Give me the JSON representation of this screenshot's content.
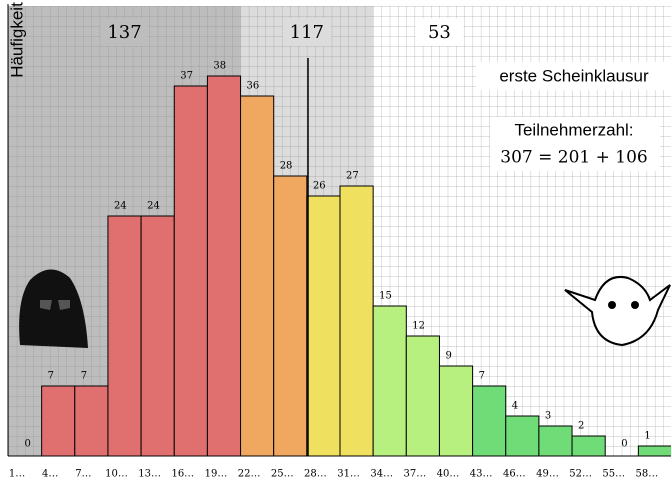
{
  "chart_data": {
    "type": "bar",
    "ylabel": "Häufigkeit",
    "categories": [
      "1…",
      "4…",
      "7…",
      "10…",
      "13…",
      "16…",
      "19…",
      "22…",
      "25…",
      "28…",
      "31…",
      "34…",
      "37…",
      "40…",
      "43…",
      "46…",
      "49…",
      "52…",
      "55…",
      "58…"
    ],
    "values": [
      0,
      7,
      7,
      24,
      24,
      37,
      38,
      36,
      28,
      26,
      27,
      15,
      12,
      9,
      7,
      4,
      3,
      2,
      0,
      1
    ],
    "colors": [
      "#e07070",
      "#e07070",
      "#e07070",
      "#e07070",
      "#e07070",
      "#e07070",
      "#e07070",
      "#f0a860",
      "#f0a860",
      "#f0e060",
      "#f0e060",
      "#b8f080",
      "#b8f080",
      "#b8f080",
      "#70dc78",
      "#70dc78",
      "#70dc78",
      "#70dc78",
      "#70dc78",
      "#70dc78"
    ],
    "ylim": [
      0,
      44
    ],
    "region_totals": [
      137,
      117,
      53
    ],
    "annotations": [
      "erste Scheinklausur",
      "Teilnehmerzahl:",
      "307 = 201 + 106"
    ]
  }
}
